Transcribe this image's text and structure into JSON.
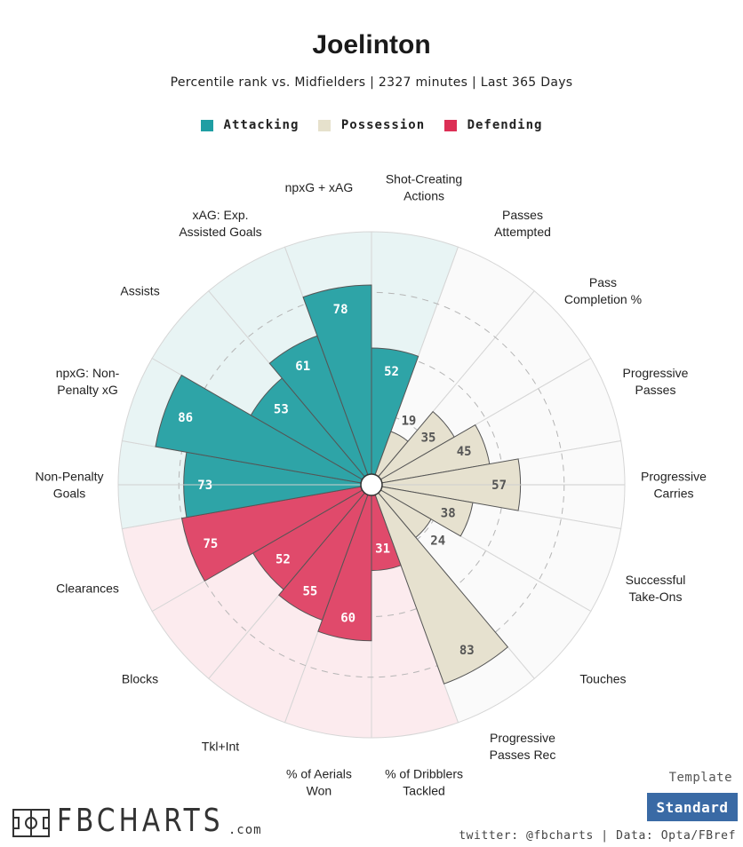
{
  "header": {
    "title": "Joelinton",
    "subtitle": "Percentile rank vs. Midfielders | 2327 minutes | Last 365 Days"
  },
  "legend": [
    {
      "label": "Attacking",
      "color": "#1f9ea3"
    },
    {
      "label": "Possession",
      "color": "#e6e1cc"
    },
    {
      "label": "Defending",
      "color": "#dc2f55"
    }
  ],
  "chart_data": {
    "type": "polar-bar",
    "title": "Joelinton",
    "rlim": [
      0,
      100
    ],
    "categories": [
      "Shot-Creating Actions",
      "Passes Attempted",
      "Pass Completion %",
      "Progressive Passes",
      "Progressive Carries",
      "Successful Take-Ons",
      "Touches",
      "Progressive Passes Rec",
      "% of Dribblers Tackled",
      "% of Aerials Won",
      "Tkl+Int",
      "Blocks",
      "Clearances",
      "Non-Penalty Goals",
      "npxG: Non-Penalty xG",
      "Assists",
      "xAG: Exp. Assisted Goals",
      "npxG + xAG"
    ],
    "label_lines": [
      [
        "Shot-Creating",
        "Actions"
      ],
      [
        "Passes",
        "Attempted"
      ],
      [
        "Pass",
        "Completion %"
      ],
      [
        "Progressive",
        "Passes"
      ],
      [
        "Progressive",
        "Carries"
      ],
      [
        "Successful",
        "Take-Ons"
      ],
      [
        "Touches"
      ],
      [
        "Progressive",
        "Passes Rec"
      ],
      [
        "% of Dribblers",
        "Tackled"
      ],
      [
        "% of Aerials",
        "Won"
      ],
      [
        "Tkl+Int"
      ],
      [
        "Blocks"
      ],
      [
        "Clearances"
      ],
      [
        "Non-Penalty",
        "Goals"
      ],
      [
        "npxG: Non-",
        "Penalty xG"
      ],
      [
        "Assists"
      ],
      [
        "xAG: Exp.",
        "Assisted Goals"
      ],
      [
        "npxG + xAG"
      ]
    ],
    "values": [
      52,
      19,
      35,
      45,
      57,
      38,
      24,
      83,
      31,
      60,
      55,
      52,
      75,
      73,
      86,
      53,
      61,
      78
    ],
    "groups": [
      "Attacking",
      "Possession",
      "Possession",
      "Possession",
      "Possession",
      "Possession",
      "Possession",
      "Possession",
      "Defending",
      "Defending",
      "Defending",
      "Defending",
      "Defending",
      "Attacking",
      "Attacking",
      "Attacking",
      "Attacking",
      "Attacking"
    ]
  },
  "footer": {
    "template_label": "Template",
    "template_button": "Standard",
    "credit": "twitter: @fbcharts | Data: Opta/FBref",
    "logo_text": "FBCHARTS",
    "logo_suffix": ".com"
  }
}
